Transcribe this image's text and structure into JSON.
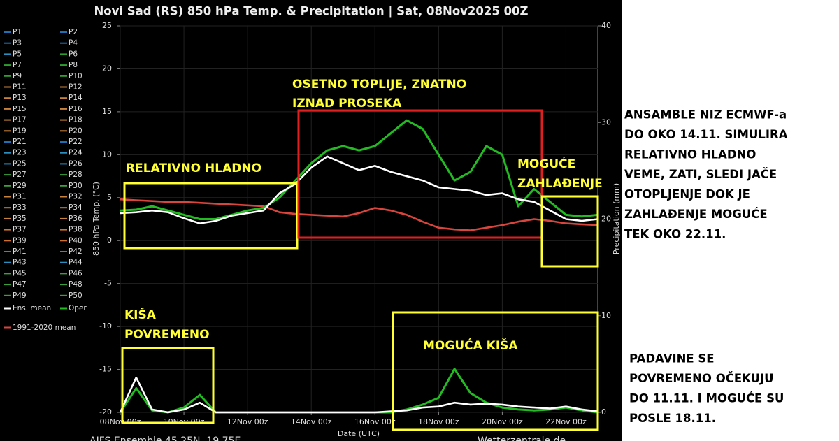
{
  "chart_data": {
    "type": "line",
    "title": "Novi Sad  (RS)  850 hPa Temp. & Precipitation | Sat, 08Nov2025 00Z",
    "x_label": "Date (UTC)",
    "y_label": "850 hPa Temp. (°C)",
    "y2_label": "Precipitation (mm)",
    "footer_left": "AIFS Ensemble  45.25N, 19.75E",
    "footer_right": "Wetterzentrale.de",
    "grid": true,
    "xlim": [
      0,
      15
    ],
    "xticks": [
      {
        "value": 0,
        "label": "08Nov 00z"
      },
      {
        "value": 2,
        "label": "10Nov 00z"
      },
      {
        "value": 4,
        "label": "12Nov 00z"
      },
      {
        "value": 6,
        "label": "14Nov 00z"
      },
      {
        "value": 8,
        "label": "16Nov 00z"
      },
      {
        "value": 10,
        "label": "18Nov 00z"
      },
      {
        "value": 12,
        "label": "20Nov 00z"
      },
      {
        "value": 14,
        "label": "22Nov 00z"
      }
    ],
    "ylim": [
      -20,
      25
    ],
    "yticks": [
      -20,
      -15,
      -10,
      -5,
      0,
      5,
      10,
      15,
      20,
      25
    ],
    "y2lim": [
      0,
      40
    ],
    "y2ticks": [
      0,
      10,
      20,
      30,
      40
    ],
    "x": [
      0,
      0.5,
      1,
      1.5,
      2,
      2.5,
      3,
      3.5,
      4,
      4.5,
      5,
      5.5,
      6,
      6.5,
      7,
      7.5,
      8,
      8.5,
      9,
      9.5,
      10,
      10.5,
      11,
      11.5,
      12,
      12.5,
      13,
      13.5,
      14,
      14.5,
      15
    ],
    "series": [
      {
        "name": "1991-2020 mean",
        "color": "#d9443c",
        "values": [
          4.8,
          4.7,
          4.6,
          4.5,
          4.5,
          4.4,
          4.3,
          4.2,
          4.1,
          4.0,
          3.3,
          3.1,
          3.0,
          2.9,
          2.8,
          3.2,
          3.8,
          3.5,
          3.0,
          2.2,
          1.5,
          1.3,
          1.2,
          1.5,
          1.8,
          2.2,
          2.5,
          2.3,
          2.0,
          1.9,
          1.8
        ]
      },
      {
        "name": "Oper",
        "color": "#22bb22",
        "values": [
          3.5,
          3.6,
          4.0,
          3.5,
          3.0,
          2.5,
          2.5,
          3.0,
          3.5,
          3.8,
          5.0,
          7.0,
          9.0,
          10.5,
          11.0,
          10.5,
          11.0,
          12.5,
          14.0,
          13.0,
          10.0,
          7.0,
          8.0,
          11.0,
          10.0,
          4.0,
          6.0,
          4.5,
          3.0,
          2.8,
          3.0
        ]
      },
      {
        "name": "Ens. mean",
        "color": "#ffffff",
        "values": [
          3.2,
          3.3,
          3.5,
          3.3,
          2.6,
          2.0,
          2.3,
          2.9,
          3.2,
          3.5,
          5.5,
          6.6,
          8.5,
          9.8,
          9.0,
          8.2,
          8.7,
          8.0,
          7.5,
          7.0,
          6.2,
          6.0,
          5.8,
          5.3,
          5.5,
          4.8,
          4.5,
          3.5,
          2.5,
          2.3,
          2.5
        ]
      },
      {
        "name": "Oper",
        "color": "#22bb22",
        "axis": "y2",
        "values": [
          0,
          2.5,
          0.2,
          0,
          0.5,
          1.8,
          0,
          0,
          0,
          0,
          0,
          0,
          0,
          0,
          0,
          0,
          0,
          0,
          0.3,
          0.8,
          1.5,
          4.5,
          2.0,
          1.0,
          0.5,
          0.3,
          0.2,
          0.3,
          0.5,
          0.2,
          0
        ]
      },
      {
        "name": "Ens. mean",
        "color": "#ffffff",
        "axis": "y2",
        "values": [
          0,
          3.6,
          0.3,
          0,
          0.3,
          1.0,
          0,
          0,
          0,
          0,
          0,
          0,
          0,
          0,
          0,
          0,
          0,
          0.1,
          0.2,
          0.5,
          0.6,
          1.0,
          0.8,
          0.9,
          0.8,
          0.6,
          0.5,
          0.4,
          0.6,
          0.3,
          0.1
        ]
      }
    ],
    "legend": [
      {
        "name": "P1",
        "color": "#1f6fb4"
      },
      {
        "name": "P2",
        "color": "#1f6fb4"
      },
      {
        "name": "P3",
        "color": "#1f6fb4"
      },
      {
        "name": "P4",
        "color": "#1f6fb4"
      },
      {
        "name": "P5",
        "color": "#2a8fbf"
      },
      {
        "name": "P6",
        "color": "#2ca02c"
      },
      {
        "name": "P7",
        "color": "#2ca02c"
      },
      {
        "name": "P8",
        "color": "#2ca02c"
      },
      {
        "name": "P9",
        "color": "#2ca02c"
      },
      {
        "name": "P10",
        "color": "#2ca02c"
      },
      {
        "name": "P11",
        "color": "#c8823c"
      },
      {
        "name": "P12",
        "color": "#c8823c"
      },
      {
        "name": "P13",
        "color": "#c8823c"
      },
      {
        "name": "P14",
        "color": "#c8823c"
      },
      {
        "name": "P15",
        "color": "#c8823c"
      },
      {
        "name": "P16",
        "color": "#c8823c"
      },
      {
        "name": "P17",
        "color": "#c8823c"
      },
      {
        "name": "P18",
        "color": "#c8823c"
      },
      {
        "name": "P19",
        "color": "#c8823c"
      },
      {
        "name": "P20",
        "color": "#c8823c"
      },
      {
        "name": "P21",
        "color": "#1f6fb4"
      },
      {
        "name": "P22",
        "color": "#1f6fb4"
      },
      {
        "name": "P23",
        "color": "#2a8fbf"
      },
      {
        "name": "P24",
        "color": "#2a8fbf"
      },
      {
        "name": "P25",
        "color": "#2a8fbf"
      },
      {
        "name": "P26",
        "color": "#2a8fbf"
      },
      {
        "name": "P27",
        "color": "#3aa03a"
      },
      {
        "name": "P28",
        "color": "#3aa03a"
      },
      {
        "name": "P29",
        "color": "#3aa03a"
      },
      {
        "name": "P30",
        "color": "#3aa03a"
      },
      {
        "name": "P31",
        "color": "#c8823c"
      },
      {
        "name": "P32",
        "color": "#c8823c"
      },
      {
        "name": "P33",
        "color": "#c8823c"
      },
      {
        "name": "P34",
        "color": "#c8823c"
      },
      {
        "name": "P35",
        "color": "#c8823c"
      },
      {
        "name": "P36",
        "color": "#c8823c"
      },
      {
        "name": "P37",
        "color": "#d0702a"
      },
      {
        "name": "P38",
        "color": "#d0702a"
      },
      {
        "name": "P39",
        "color": "#d0702a"
      },
      {
        "name": "P40",
        "color": "#d0702a"
      },
      {
        "name": "P41",
        "color": "#2a8fbf"
      },
      {
        "name": "P42",
        "color": "#2a8fbf"
      },
      {
        "name": "P43",
        "color": "#2a8fbf"
      },
      {
        "name": "P44",
        "color": "#2a8fbf"
      },
      {
        "name": "P45",
        "color": "#3aa03a"
      },
      {
        "name": "P46",
        "color": "#3aa03a"
      },
      {
        "name": "P47",
        "color": "#3aa03a"
      },
      {
        "name": "P48",
        "color": "#3aa03a"
      },
      {
        "name": "P49",
        "color": "#3aa03a"
      },
      {
        "name": "P50",
        "color": "#3aa03a"
      }
    ]
  },
  "annotations": {
    "cold": "RELATIVNO HLADNO",
    "warm_1": "OSETNO TOPLIJE, ZNATNO",
    "warm_2": "IZNAD PROSEKA",
    "cooling_1": "MOGUĆE",
    "cooling_2": "ZAHLAĐENJE",
    "rain_1": "KIŠA",
    "rain_2": "POVREMENO",
    "rain_later": "MOGUĆA KIŠA",
    "side_top": [
      "ANSAMBLE NIZ ECMWF-a",
      "DO OKO 14.11. SIMULIRA",
      "RELATIVNO HLADNO",
      "VEME, ZATI, SLEDI JAČE",
      "OTOPLJENJE DOK JE",
      "ZAHLAĐENJE MOGUĆE",
      "TEK OKO 22.11."
    ],
    "side_bottom": [
      "PADAVINE SE",
      "POVREMENO OČEKUJU",
      "DO 11.11. I MOGUĆE SU",
      "POSLE 18.11."
    ]
  }
}
